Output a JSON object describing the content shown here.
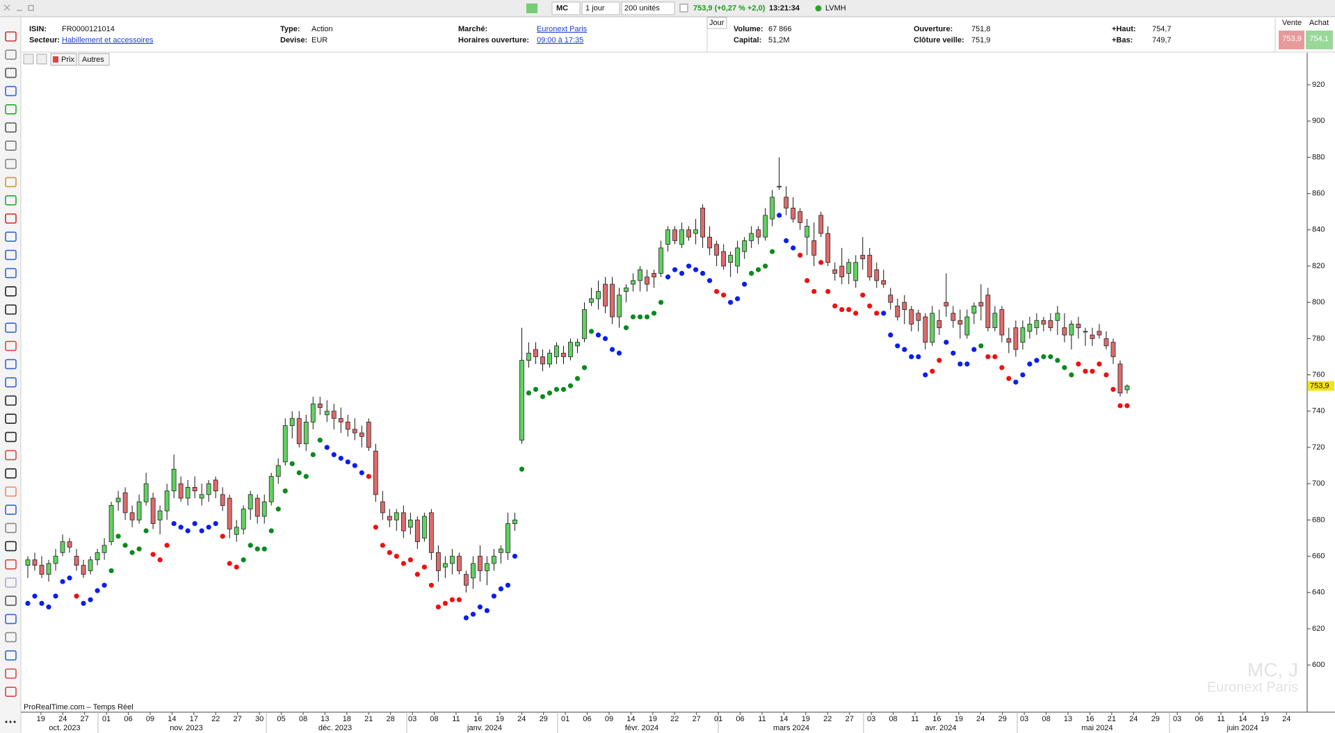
{
  "top_bar": {
    "symbol": "MC",
    "period": "1 jour",
    "units": "200 unités",
    "quote": "753,9 (+0,27 % +2,0)",
    "time": "13:21:34",
    "name": "LVMH"
  },
  "info": {
    "isin_label": "ISIN:",
    "isin": "FR0000121014",
    "sector_label": "Secteur:",
    "sector": "Habillement et accessoires",
    "type_label": "Type:",
    "type": "Action",
    "currency_label": "Devise:",
    "currency": "EUR",
    "market_label": "Marché:",
    "market": "Euronext Paris",
    "hours_label": "Horaires ouverture:",
    "hours": "09:00 à 17:35",
    "period_tab": "Jour",
    "volume_label": "Volume:",
    "volume": "67 866",
    "capital_label": "Capital:",
    "capital": "51,2M",
    "open_label": "Ouverture:",
    "open": "751,8",
    "prev_close_label": "Clôture veille:",
    "prev_close": "751,9",
    "high_label": "+Haut:",
    "high": "754,7",
    "low_label": "+Bas:",
    "low": "749,7",
    "sell_label": "Vente",
    "sell": "753,9",
    "buy_label": "Achat",
    "buy": "754,1"
  },
  "chart_toolbar": {
    "price_button": "Prix",
    "other_button": "Autres"
  },
  "chart": {
    "type": "candlestick",
    "up_color": "#5fd35f",
    "down_color": "#e06a6a",
    "ohlc": [
      [
        655,
        660,
        648,
        658
      ],
      [
        658,
        662,
        652,
        655
      ],
      [
        655,
        660,
        648,
        650
      ],
      [
        650,
        658,
        646,
        656
      ],
      [
        656,
        664,
        652,
        660
      ],
      [
        662,
        672,
        660,
        668
      ],
      [
        668,
        670,
        662,
        665
      ],
      [
        660,
        664,
        652,
        655
      ],
      [
        655,
        658,
        648,
        650
      ],
      [
        652,
        660,
        650,
        658
      ],
      [
        658,
        664,
        655,
        662
      ],
      [
        662,
        670,
        658,
        666
      ],
      [
        668,
        690,
        666,
        688
      ],
      [
        690,
        696,
        685,
        692
      ],
      [
        695,
        698,
        680,
        684
      ],
      [
        684,
        688,
        676,
        680
      ],
      [
        680,
        694,
        678,
        690
      ],
      [
        690,
        706,
        688,
        700
      ],
      [
        692,
        695,
        675,
        678
      ],
      [
        680,
        688,
        672,
        685
      ],
      [
        685,
        700,
        680,
        696
      ],
      [
        696,
        716,
        692,
        708
      ],
      [
        700,
        704,
        690,
        692
      ],
      [
        692,
        702,
        688,
        698
      ],
      [
        698,
        704,
        692,
        696
      ],
      [
        692,
        700,
        688,
        694
      ],
      [
        694,
        702,
        690,
        700
      ],
      [
        702,
        704,
        692,
        696
      ],
      [
        694,
        698,
        685,
        688
      ],
      [
        692,
        694,
        670,
        675
      ],
      [
        672,
        680,
        668,
        676
      ],
      [
        675,
        688,
        672,
        686
      ],
      [
        686,
        696,
        680,
        694
      ],
      [
        692,
        694,
        678,
        682
      ],
      [
        682,
        694,
        678,
        690
      ],
      [
        690,
        706,
        688,
        704
      ],
      [
        704,
        714,
        700,
        710
      ],
      [
        712,
        736,
        710,
        732
      ],
      [
        732,
        740,
        725,
        736
      ],
      [
        736,
        740,
        720,
        722
      ],
      [
        722,
        738,
        718,
        734
      ],
      [
        734,
        748,
        730,
        744
      ],
      [
        744,
        748,
        738,
        742
      ],
      [
        738,
        746,
        734,
        740
      ],
      [
        740,
        744,
        730,
        736
      ],
      [
        736,
        742,
        728,
        734
      ],
      [
        734,
        738,
        726,
        730
      ],
      [
        730,
        736,
        724,
        728
      ],
      [
        728,
        732,
        720,
        726
      ],
      [
        734,
        736,
        718,
        720
      ],
      [
        718,
        722,
        690,
        694
      ],
      [
        690,
        696,
        680,
        684
      ],
      [
        682,
        686,
        676,
        680
      ],
      [
        680,
        686,
        674,
        684
      ],
      [
        684,
        688,
        670,
        674
      ],
      [
        676,
        684,
        672,
        680
      ],
      [
        680,
        682,
        664,
        668
      ],
      [
        670,
        684,
        668,
        682
      ],
      [
        684,
        686,
        658,
        662
      ],
      [
        662,
        666,
        646,
        652
      ],
      [
        654,
        660,
        648,
        656
      ],
      [
        656,
        664,
        650,
        660
      ],
      [
        660,
        662,
        650,
        652
      ],
      [
        650,
        652,
        640,
        644
      ],
      [
        648,
        660,
        642,
        656
      ],
      [
        660,
        666,
        646,
        652
      ],
      [
        652,
        660,
        644,
        656
      ],
      [
        656,
        664,
        652,
        660
      ],
      [
        662,
        666,
        656,
        664
      ],
      [
        662,
        684,
        658,
        678
      ],
      [
        678,
        684,
        674,
        680
      ],
      [
        724,
        786,
        722,
        768
      ],
      [
        768,
        778,
        764,
        772
      ],
      [
        774,
        778,
        766,
        770
      ],
      [
        770,
        774,
        762,
        766
      ],
      [
        766,
        774,
        764,
        772
      ],
      [
        770,
        778,
        766,
        776
      ],
      [
        772,
        776,
        766,
        770
      ],
      [
        770,
        780,
        768,
        778
      ],
      [
        776,
        780,
        772,
        778
      ],
      [
        780,
        800,
        778,
        796
      ],
      [
        800,
        808,
        798,
        802
      ],
      [
        802,
        812,
        796,
        806
      ],
      [
        810,
        814,
        794,
        798
      ],
      [
        810,
        814,
        788,
        792
      ],
      [
        792,
        808,
        786,
        804
      ],
      [
        806,
        810,
        800,
        808
      ],
      [
        810,
        816,
        806,
        812
      ],
      [
        812,
        820,
        806,
        818
      ],
      [
        814,
        818,
        806,
        810
      ],
      [
        816,
        818,
        808,
        814
      ],
      [
        816,
        834,
        814,
        830
      ],
      [
        832,
        842,
        828,
        840
      ],
      [
        840,
        842,
        832,
        834
      ],
      [
        832,
        844,
        830,
        840
      ],
      [
        840,
        842,
        834,
        836
      ],
      [
        838,
        846,
        832,
        840
      ],
      [
        852,
        854,
        830,
        836
      ],
      [
        836,
        842,
        826,
        830
      ],
      [
        832,
        834,
        820,
        826
      ],
      [
        828,
        832,
        818,
        820
      ],
      [
        822,
        828,
        814,
        826
      ],
      [
        820,
        834,
        816,
        830
      ],
      [
        828,
        836,
        824,
        834
      ],
      [
        834,
        842,
        830,
        838
      ],
      [
        840,
        842,
        832,
        836
      ],
      [
        836,
        852,
        834,
        848
      ],
      [
        846,
        862,
        842,
        858
      ],
      [
        864,
        880,
        862,
        864
      ],
      [
        858,
        864,
        848,
        852
      ],
      [
        852,
        858,
        844,
        846
      ],
      [
        850,
        852,
        840,
        844
      ],
      [
        836,
        846,
        826,
        842
      ],
      [
        834,
        844,
        820,
        826
      ],
      [
        848,
        850,
        836,
        838
      ],
      [
        838,
        842,
        820,
        822
      ],
      [
        818,
        822,
        812,
        816
      ],
      [
        820,
        830,
        810,
        814
      ],
      [
        816,
        824,
        810,
        822
      ],
      [
        812,
        826,
        808,
        822
      ],
      [
        826,
        836,
        818,
        824
      ],
      [
        826,
        830,
        812,
        814
      ],
      [
        818,
        822,
        808,
        812
      ],
      [
        812,
        818,
        808,
        810
      ],
      [
        804,
        808,
        796,
        800
      ],
      [
        798,
        802,
        790,
        792
      ],
      [
        800,
        804,
        788,
        796
      ],
      [
        796,
        798,
        784,
        788
      ],
      [
        794,
        796,
        784,
        790
      ],
      [
        792,
        794,
        774,
        778
      ],
      [
        778,
        798,
        776,
        794
      ],
      [
        790,
        796,
        782,
        786
      ],
      [
        800,
        816,
        792,
        798
      ],
      [
        794,
        798,
        786,
        790
      ],
      [
        790,
        796,
        780,
        788
      ],
      [
        782,
        796,
        780,
        792
      ],
      [
        794,
        800,
        788,
        798
      ],
      [
        800,
        810,
        790,
        798
      ],
      [
        804,
        808,
        784,
        786
      ],
      [
        786,
        798,
        784,
        794
      ],
      [
        796,
        798,
        778,
        782
      ],
      [
        780,
        786,
        772,
        778
      ],
      [
        786,
        790,
        770,
        774
      ],
      [
        778,
        790,
        774,
        786
      ],
      [
        784,
        792,
        780,
        788
      ],
      [
        786,
        794,
        782,
        790
      ],
      [
        790,
        792,
        784,
        788
      ],
      [
        790,
        794,
        784,
        786
      ],
      [
        790,
        798,
        782,
        794
      ],
      [
        786,
        794,
        778,
        782
      ],
      [
        782,
        790,
        774,
        788
      ],
      [
        788,
        792,
        780,
        786
      ],
      [
        784,
        786,
        776,
        784
      ],
      [
        782,
        786,
        776,
        780
      ],
      [
        784,
        788,
        780,
        782
      ],
      [
        780,
        784,
        774,
        776
      ],
      [
        778,
        780,
        766,
        770
      ],
      [
        766,
        768,
        748,
        750
      ],
      [
        751.8,
        754.7,
        749.7,
        753.9
      ]
    ],
    "sar": {
      "values": [
        634,
        638,
        634,
        632,
        638,
        646,
        648,
        638,
        634,
        636,
        641,
        644,
        652,
        671,
        666,
        662,
        664,
        674,
        661,
        658,
        666,
        678,
        676,
        674,
        678,
        674,
        676,
        678,
        671,
        656,
        654,
        658,
        666,
        664,
        664,
        674,
        686,
        696,
        711,
        706,
        704,
        716,
        724,
        720,
        716,
        714,
        712,
        710,
        706,
        704,
        676,
        666,
        662,
        660,
        656,
        658,
        650,
        654,
        644,
        632,
        634,
        636,
        636,
        626,
        628,
        632,
        630,
        638,
        642,
        644,
        660,
        708,
        750,
        752,
        748,
        750,
        752,
        752,
        754,
        758,
        764,
        784,
        782,
        780,
        774,
        772,
        786,
        792,
        792,
        792,
        794,
        800,
        814,
        818,
        816,
        820,
        818,
        816,
        812,
        806,
        804,
        800,
        802,
        810,
        816,
        818,
        820,
        828,
        848,
        834,
        830,
        826,
        812,
        806,
        822,
        806,
        798,
        796,
        796,
        794,
        804,
        798,
        794,
        794,
        782,
        776,
        774,
        770,
        770,
        760,
        762,
        768,
        778,
        772,
        766,
        766,
        774,
        776,
        770,
        770,
        764,
        758,
        756,
        760,
        766,
        768,
        770,
        770,
        768,
        764,
        760,
        766,
        762,
        762,
        766,
        760,
        752,
        743,
        743
      ],
      "color_codes": "bbbbbbbrbbbbggggggrrrbbbbbbbrrrggggggggggggbbbbbbrrrrrrrrrrrrrrbbbbbbbbgggggggggggbbbbggggggbbbbbbbrrbbbggggbbbrrrrrrrrrrrrbbbbbbbrrbbbbbgrrrrbbbbgggggrrrrrrrr",
      "palette": {
        "b": "#0a1ef0",
        "g": "#0a8a1e",
        "r": "#f01010"
      }
    },
    "ylim": [
      574,
      938
    ],
    "yticks": [
      600,
      620,
      640,
      660,
      680,
      700,
      720,
      740,
      760,
      780,
      800,
      820,
      840,
      860,
      880,
      900,
      920
    ],
    "last_price_label": "753,9",
    "x_tick_labels": [
      "19",
      "24",
      "27",
      "01",
      "06",
      "09",
      "14",
      "17",
      "22",
      "27",
      "30",
      "05",
      "08",
      "13",
      "18",
      "21",
      "28",
      "03",
      "08",
      "11",
      "16",
      "19",
      "24",
      "29",
      "01",
      "06",
      "09",
      "14",
      "19",
      "22",
      "27",
      "01",
      "06",
      "11",
      "14",
      "19",
      "22",
      "27",
      "03",
      "08",
      "11",
      "16",
      "19",
      "24",
      "29",
      "03",
      "08",
      "13",
      "16",
      "21",
      "24",
      "29",
      "03",
      "06",
      "11",
      "14",
      "19",
      "24"
    ],
    "month_labels": [
      "oct. 2023",
      "nov. 2023",
      "déc. 2023",
      "janv. 2024",
      "févr. 2024",
      "mars 2024",
      "avr. 2024",
      "mai 2024",
      "juin 2024"
    ],
    "watermark_symbol": "MC, J",
    "watermark_market": "Euronext Paris",
    "source": "ProRealTime.com – Temps Réel"
  }
}
